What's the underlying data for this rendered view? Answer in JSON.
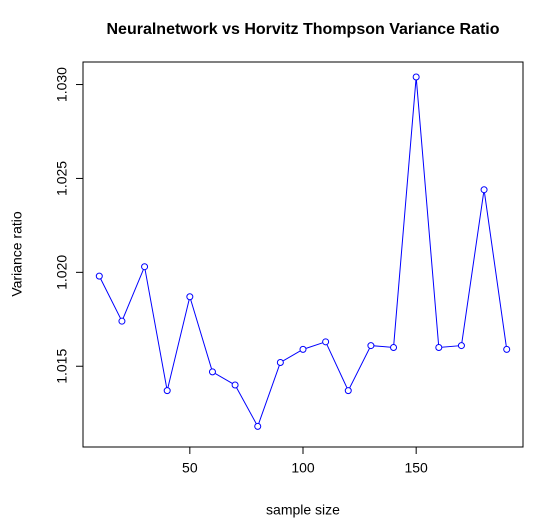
{
  "chart_data": {
    "type": "line",
    "title": "Neuralnetwork vs Horvitz Thompson Variance Ratio",
    "x_label": "sample size",
    "y_label": "Variance ratio",
    "x": [
      10,
      20,
      30,
      40,
      50,
      60,
      70,
      80,
      90,
      100,
      110,
      120,
      130,
      140,
      150,
      160,
      170,
      180,
      190
    ],
    "series": [
      {
        "name": "ratio",
        "color": "#0000ff",
        "values": [
          1.0198,
          1.0174,
          1.0203,
          1.0137,
          1.0187,
          1.0147,
          1.014,
          1.0118,
          1.0152,
          1.0159,
          1.0163,
          1.0137,
          1.0161,
          1.016,
          1.0304,
          1.016,
          1.0161,
          1.0244,
          1.0159
        ]
      }
    ],
    "xlim": [
      2.8,
      197.2
    ],
    "ylim": [
      1.0107,
      1.0312
    ],
    "xticks": [
      50,
      100,
      150
    ],
    "yticks": [
      1.015,
      {
        "value": 1.02,
        "label": "1.020"
      },
      1.025,
      {
        "value": 1.03,
        "label": "1.030"
      }
    ]
  }
}
